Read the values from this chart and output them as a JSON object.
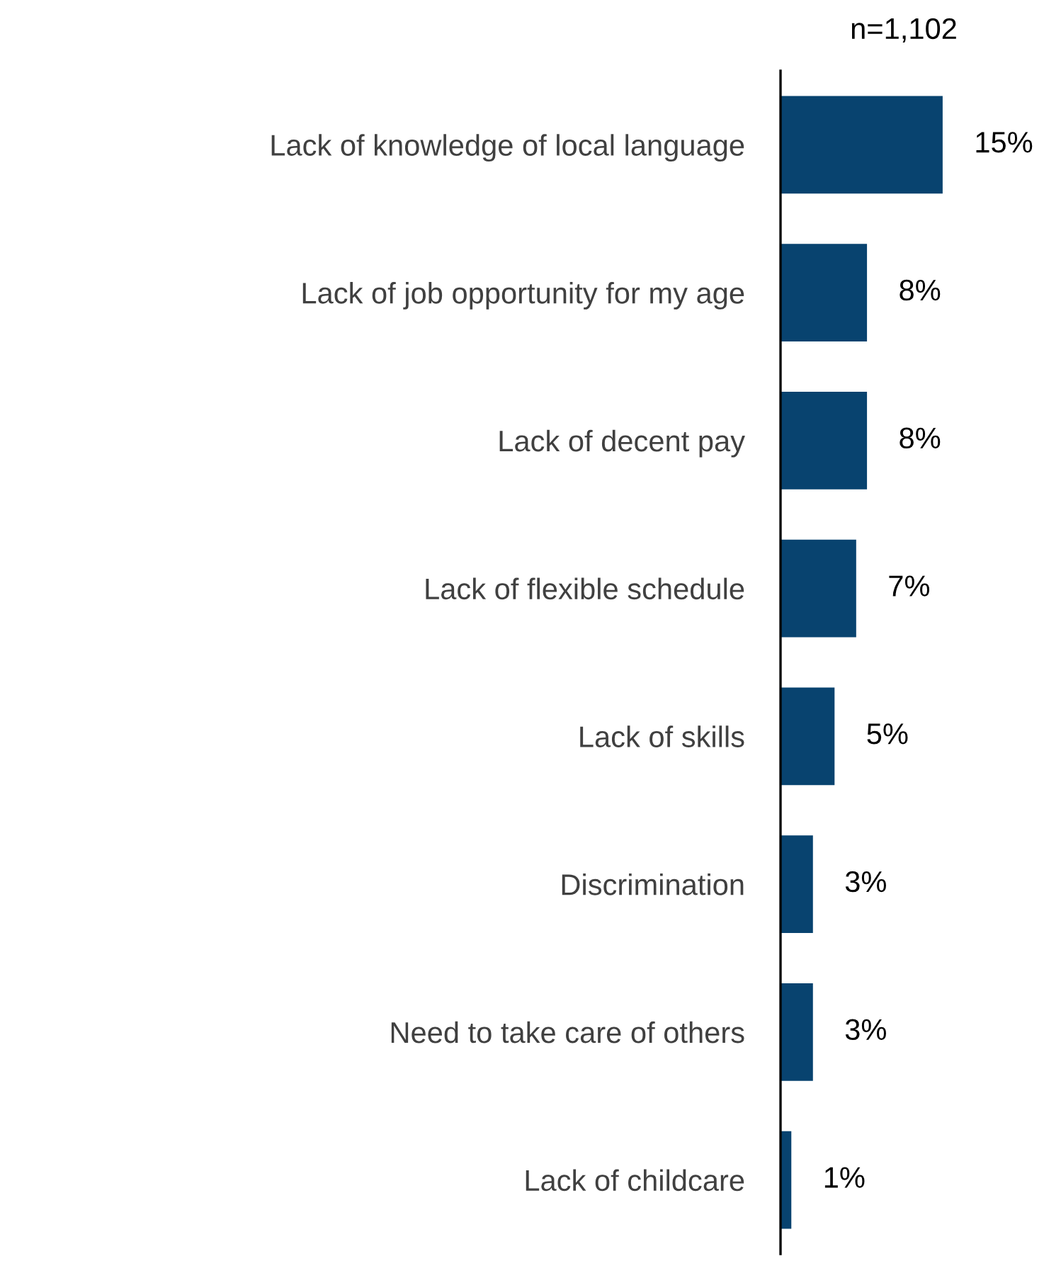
{
  "chart_data": {
    "type": "bar",
    "orientation": "horizontal",
    "categories": [
      "Lack of knowledge of local language",
      "Lack of job opportunity for my age",
      "Lack of decent pay",
      "Lack of flexible schedule",
      "Lack of skills",
      "Discrimination",
      "Need to take care of others",
      "Lack of childcare"
    ],
    "values": [
      15,
      8,
      8,
      7,
      5,
      3,
      3,
      1
    ],
    "value_labels": [
      "15%",
      "8%",
      "8%",
      "7%",
      "5%",
      "3%",
      "3%",
      "1%"
    ],
    "color": "#08436f",
    "annotations": [
      "n=1,102"
    ],
    "grid": false
  }
}
